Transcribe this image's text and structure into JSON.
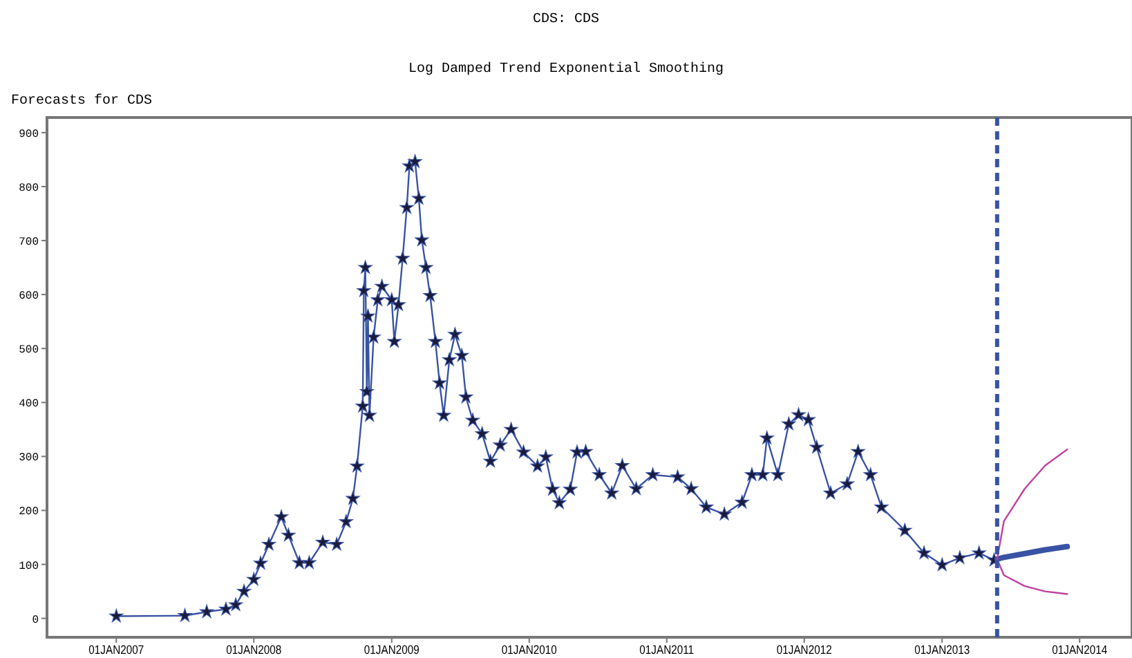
{
  "chart_data": {
    "type": "line",
    "title": "CDS: CDS",
    "subtitle": "Log Damped Trend Exponential Smoothing",
    "ylabel": "Forecasts for CDS",
    "xlim": [
      "2006-07-01",
      "2014-05-20"
    ],
    "ylim": [
      -35,
      928
    ],
    "xticks": [
      {
        "value": "2007-01-01",
        "label": "01JAN2007"
      },
      {
        "value": "2008-01-01",
        "label": "01JAN2008"
      },
      {
        "value": "2009-01-01",
        "label": "01JAN2009"
      },
      {
        "value": "2010-01-01",
        "label": "01JAN2010"
      },
      {
        "value": "2011-01-01",
        "label": "01JAN2011"
      },
      {
        "value": "2012-01-01",
        "label": "01JAN2012"
      },
      {
        "value": "2013-01-01",
        "label": "01JAN2013"
      },
      {
        "value": "2014-01-01",
        "label": "01JAN2014"
      }
    ],
    "yticks": [
      0,
      100,
      200,
      300,
      400,
      500,
      600,
      700,
      800,
      900
    ],
    "grid": false,
    "line_style": "solid",
    "ref_lines": [
      {
        "axis": "x",
        "value": "2013-05-27",
        "color": "#3953a4",
        "line_style": "dashed"
      }
    ],
    "series": [
      {
        "color": "#3953a4",
        "marker": "star",
        "x": [
          "2007-01-01",
          "2007-07-02",
          "2007-08-29",
          "2007-10-19",
          "2007-11-14",
          "2007-12-06",
          "2008-01-01",
          "2008-01-19",
          "2008-02-10",
          "2008-03-14",
          "2008-04-02",
          "2008-05-01",
          "2008-05-27",
          "2008-07-02",
          "2008-08-08",
          "2008-09-02",
          "2008-09-20",
          "2008-10-01",
          "2008-10-16",
          "2008-10-19",
          "2008-10-23",
          "2008-10-27",
          "2008-10-30",
          "2008-11-03",
          "2008-11-14",
          "2008-11-25",
          "2008-12-06",
          "2009-01-01",
          "2009-01-08",
          "2009-01-19",
          "2009-01-30",
          "2009-02-10",
          "2009-02-17",
          "2009-03-04",
          "2009-03-14",
          "2009-03-22",
          "2009-04-02",
          "2009-04-13",
          "2009-04-27",
          "2009-05-08",
          "2009-05-19",
          "2009-06-03",
          "2009-06-18",
          "2009-07-06",
          "2009-07-17",
          "2009-08-04",
          "2009-08-29",
          "2009-09-20",
          "2009-10-16",
          "2009-11-14",
          "2009-12-17",
          "2010-01-23",
          "2010-02-14",
          "2010-03-04",
          "2010-03-22",
          "2010-04-20",
          "2010-05-08",
          "2010-05-31",
          "2010-07-06",
          "2010-08-08",
          "2010-09-05",
          "2010-10-12",
          "2010-11-25",
          "2011-01-30",
          "2011-03-07",
          "2011-04-16",
          "2011-06-03",
          "2011-07-20",
          "2011-08-15",
          "2011-09-13",
          "2011-09-24",
          "2011-10-23",
          "2011-11-21",
          "2011-12-17",
          "2012-01-12",
          "2012-02-03",
          "2012-03-11",
          "2012-04-24",
          "2012-05-23",
          "2012-06-25",
          "2012-07-24",
          "2012-09-24",
          "2012-11-14",
          "2013-01-01",
          "2013-02-17",
          "2013-04-09",
          "2013-05-19"
        ],
        "values": [
          4,
          5,
          12,
          17,
          25,
          50,
          72,
          102,
          137,
          188,
          154,
          103,
          103,
          141,
          137,
          179,
          222,
          282,
          393,
          607,
          650,
          420,
          560,
          376,
          521,
          590,
          615,
          590,
          513,
          581,
          667,
          761,
          838,
          846,
          778,
          701,
          650,
          598,
          513,
          436,
          376,
          479,
          526,
          487,
          410,
          367,
          342,
          291,
          321,
          350,
          308,
          282,
          299,
          239,
          214,
          239,
          308,
          309,
          266,
          232,
          283,
          240,
          266,
          262,
          240,
          206,
          193,
          215,
          266,
          266,
          334,
          266,
          360,
          377,
          368,
          317,
          232,
          249,
          309,
          266,
          206,
          163,
          121,
          99,
          112,
          121,
          108
        ]
      },
      {
        "color": "#3953a4",
        "marker": "none",
        "x": [
          "2013-05-27",
          "2013-06-14",
          "2013-08-08",
          "2013-10-01",
          "2013-11-29"
        ],
        "values": [
          110,
          113,
          120,
          127,
          133
        ]
      },
      {
        "color": "#c040a0",
        "marker": "none",
        "x": [
          "2013-05-27",
          "2013-06-14",
          "2013-08-08",
          "2013-10-01",
          "2013-11-29"
        ],
        "values": [
          110,
          180,
          240,
          283,
          313
        ]
      },
      {
        "color": "#c040a0",
        "marker": "none",
        "x": [
          "2013-05-27",
          "2013-06-14",
          "2013-08-08",
          "2013-10-01",
          "2013-11-29"
        ],
        "values": [
          110,
          80,
          60,
          50,
          45
        ]
      }
    ]
  }
}
